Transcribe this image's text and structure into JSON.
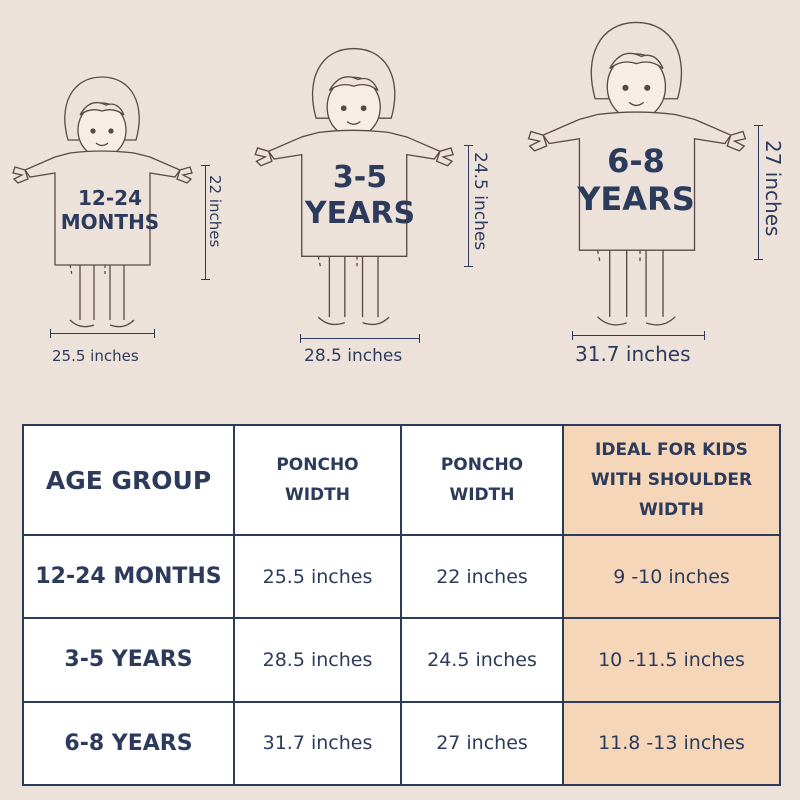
{
  "figures": [
    {
      "label_line1": "12-24",
      "label_line2": "MONTHS",
      "width_label": "25.5 inches",
      "height_label": "22 inches"
    },
    {
      "label_line1": "3-5",
      "label_line2": "YEARS",
      "width_label": "28.5 inches",
      "height_label": "24.5 inches"
    },
    {
      "label_line1": "6-8",
      "label_line2": "YEARS",
      "width_label": "31.7 inches",
      "height_label": "27 inches"
    }
  ],
  "table": {
    "headers": [
      "AGE GROUP",
      "PONCHO WIDTH",
      "PONCHO WIDTH",
      "IDEAL FOR KIDS WITH SHOULDER WIDTH"
    ],
    "rows": [
      [
        "12-24 MONTHS",
        "25.5 inches",
        "22 inches",
        "9 -10 inches"
      ],
      [
        "3-5 YEARS",
        "28.5 inches",
        "24.5 inches",
        "10 -11.5 inches"
      ],
      [
        "6-8 YEARS",
        "31.7 inches",
        "27 inches",
        "11.8 -13 inches"
      ]
    ]
  },
  "colors": {
    "background": "#ede2da",
    "text": "#2c3a5c",
    "highlight": "#f6d6b8"
  }
}
